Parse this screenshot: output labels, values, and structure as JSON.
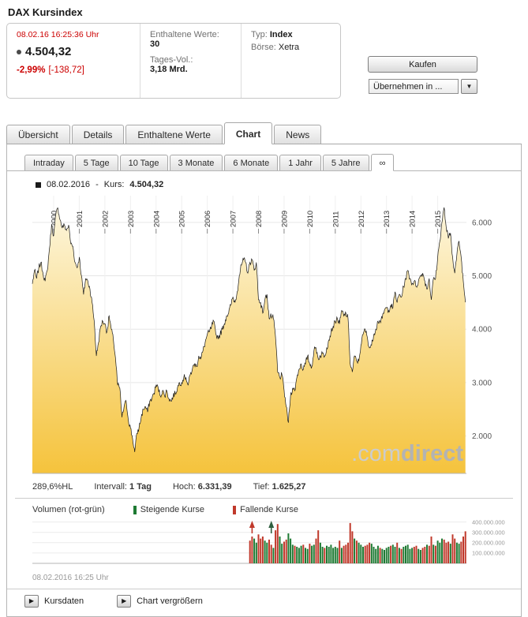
{
  "page": {
    "title": "DAX Kursindex"
  },
  "icons": {
    "dropdown_arrow": "▼",
    "link_arrow": "▶"
  },
  "quote": {
    "timestamp": "08.02.16  16:25:36 Uhr",
    "value": "4.504,32",
    "change_percent": "-2,99%",
    "change_absolute": "[-138,72]",
    "included_values_label": "Enthaltene Werte:",
    "included_values": "30",
    "day_volume_label": "Tages-Vol.:",
    "day_volume": "3,18 Mrd.",
    "type_label": "Typ:",
    "type_value": "Index",
    "exchange_label": "Börse:",
    "exchange_value": "Xetra"
  },
  "actions": {
    "buy_label": "Kaufen",
    "apply_to_label": "Übernehmen in ..."
  },
  "main_tabs": [
    {
      "label": "Übersicht",
      "active": false
    },
    {
      "label": "Details",
      "active": false
    },
    {
      "label": "Enthaltene Werte",
      "active": false
    },
    {
      "label": "Chart",
      "active": true
    },
    {
      "label": "News",
      "active": false
    }
  ],
  "range_tabs": [
    {
      "label": "Intraday",
      "active": false
    },
    {
      "label": "5 Tage",
      "active": false
    },
    {
      "label": "10 Tage",
      "active": false
    },
    {
      "label": "3 Monate",
      "active": false
    },
    {
      "label": "6 Monate",
      "active": false
    },
    {
      "label": "1 Jahr",
      "active": false
    },
    {
      "label": "5 Jahre",
      "active": false
    },
    {
      "label": "∞",
      "active": true
    }
  ],
  "chart_header": {
    "date": "08.02.2016",
    "separator": "-",
    "kurs_label": "Kurs:",
    "kurs_value": "4.504,32"
  },
  "chart_stats": {
    "hl": "289,6%HL",
    "interval_label": "Intervall:",
    "interval_value": "1 Tag",
    "high_label": "Hoch:",
    "high_value": "6.331,39",
    "low_label": "Tief:",
    "low_value": "1.625,27"
  },
  "volume_section": {
    "title": "Volumen (rot-grün)",
    "rising_label": "Steigende Kurse",
    "falling_label": "Fallende Kurse",
    "rising_color": "#1e7a33",
    "falling_color": "#c0392b",
    "timestamp": "08.02.2016 16:25 Uhr"
  },
  "footer_links": [
    {
      "label": "Kursdaten"
    },
    {
      "label": "Chart vergrößern"
    }
  ],
  "watermark": {
    "prefix": ".com",
    "suffix": "direct"
  },
  "chart_data": {
    "type": "area",
    "title": "DAX Kursindex",
    "x_axis": {
      "year_labels": [
        "2000",
        "2001",
        "2002",
        "2003",
        "2004",
        "2005",
        "2006",
        "2007",
        "2008",
        "2009",
        "2010",
        "2011",
        "2012",
        "2013",
        "2014",
        "2015"
      ]
    },
    "y_axis": {
      "tick_labels": [
        "6.000",
        "5.000",
        "4.000",
        "3.000",
        "2.000"
      ],
      "range": [
        1300,
        6500
      ]
    },
    "price_series": {
      "name": "DAX Kursindex",
      "start": "1999-03",
      "step": "month",
      "unit": "Indexpunkte",
      "last_date": "08.02.2016",
      "last_value": 4504.32,
      "high": 6331.39,
      "low": 1625.27,
      "interval_displayed": "1 Tag",
      "line_color": "#1a1a1a",
      "fill_gradient": [
        "#fdf6dd",
        "#f5c33c"
      ],
      "values": [
        4850,
        5100,
        4950,
        5150,
        5250,
        5050,
        4900,
        5100,
        5500,
        5950,
        5750,
        6150,
        6270,
        6050,
        5900,
        5950,
        5850,
        5950,
        5600,
        5550,
        5250,
        5150,
        5350,
        5000,
        4650,
        4950,
        4900,
        4750,
        4500,
        4150,
        3500,
        3750,
        4050,
        4150,
        4100,
        3950,
        4250,
        4000,
        3800,
        3450,
        2950,
        2900,
        2350,
        2550,
        2650,
        2300,
        2150,
        1950,
        1700,
        2050,
        2150,
        2350,
        2500,
        2550,
        2450,
        2650,
        2700,
        2800,
        2950,
        2900,
        2750,
        2850,
        2750,
        2850,
        2700,
        2650,
        2750,
        2800,
        2900,
        3000,
        3000,
        3100,
        3100,
        2950,
        3150,
        3250,
        3350,
        3300,
        3500,
        3450,
        3600,
        3750,
        3900,
        3950,
        4050,
        4150,
        3900,
        3850,
        3900,
        4000,
        4100,
        4250,
        4300,
        4450,
        4600,
        4500,
        4700,
        5000,
        5200,
        5300,
        5250,
        5050,
        5250,
        5300,
        5100,
        5250,
        4550,
        4500,
        4300,
        4550,
        4650,
        4200,
        4250,
        4200,
        3850,
        3200,
        3100,
        3150,
        2850,
        2550,
        2250,
        2750,
        2900,
        2850,
        3100,
        3250,
        3350,
        3250,
        3350,
        3500,
        3350,
        3300,
        3600,
        3650,
        3450,
        3500,
        3550,
        3500,
        3650,
        3800,
        3950,
        4050,
        4150,
        4200,
        4100,
        4350,
        4250,
        4300,
        4200,
        3350,
        3200,
        3500,
        3400,
        3400,
        3700,
        3900,
        4000,
        3850,
        3650,
        3700,
        3900,
        4000,
        4150,
        4150,
        4200,
        4350,
        4400,
        4350,
        4450,
        4400,
        4700,
        4500,
        4650,
        4600,
        4800,
        4950,
        5100,
        4950,
        4850,
        4900,
        4800,
        4900,
        5000,
        5050,
        4900,
        4750,
        4950,
        4550,
        4950,
        4950,
        5350,
        5650,
        6000,
        6280,
        5900,
        5700,
        5800,
        5350,
        5050,
        5400,
        5650,
        5350,
        4900,
        4504.32
      ]
    },
    "volume_series": {
      "start": "2007-09",
      "step": "month",
      "units": "shares",
      "values_in_millions": true,
      "ymax_millions": 420,
      "tick_labels": [
        "400.000.000",
        "300.000.000",
        "200.000.000",
        "100.000.000"
      ],
      "colors": {
        "r": "#c0392b",
        "g": "#1e7a33"
      },
      "spike_markers": [
        {
          "index": 1,
          "color": "#c0392b"
        },
        {
          "index": 10,
          "color": "#2f5f3f"
        }
      ],
      "bars": [
        [
          220,
          "r"
        ],
        [
          260,
          "r"
        ],
        [
          240,
          "g"
        ],
        [
          200,
          "g"
        ],
        [
          280,
          "r"
        ],
        [
          240,
          "r"
        ],
        [
          260,
          "r"
        ],
        [
          220,
          "g"
        ],
        [
          200,
          "g"
        ],
        [
          230,
          "r"
        ],
        [
          180,
          "r"
        ],
        [
          150,
          "g"
        ],
        [
          320,
          "r"
        ],
        [
          380,
          "r"
        ],
        [
          260,
          "g"
        ],
        [
          190,
          "g"
        ],
        [
          210,
          "r"
        ],
        [
          230,
          "r"
        ],
        [
          290,
          "g"
        ],
        [
          240,
          "g"
        ],
        [
          180,
          "g"
        ],
        [
          170,
          "r"
        ],
        [
          160,
          "g"
        ],
        [
          150,
          "g"
        ],
        [
          170,
          "g"
        ],
        [
          180,
          "r"
        ],
        [
          150,
          "g"
        ],
        [
          140,
          "g"
        ],
        [
          190,
          "r"
        ],
        [
          170,
          "g"
        ],
        [
          180,
          "g"
        ],
        [
          240,
          "r"
        ],
        [
          320,
          "r"
        ],
        [
          200,
          "g"
        ],
        [
          160,
          "g"
        ],
        [
          150,
          "r"
        ],
        [
          170,
          "g"
        ],
        [
          160,
          "g"
        ],
        [
          180,
          "g"
        ],
        [
          150,
          "g"
        ],
        [
          160,
          "g"
        ],
        [
          150,
          "g"
        ],
        [
          220,
          "r"
        ],
        [
          150,
          "g"
        ],
        [
          170,
          "r"
        ],
        [
          180,
          "r"
        ],
        [
          200,
          "r"
        ],
        [
          390,
          "r"
        ],
        [
          310,
          "r"
        ],
        [
          240,
          "g"
        ],
        [
          220,
          "r"
        ],
        [
          200,
          "g"
        ],
        [
          180,
          "g"
        ],
        [
          160,
          "g"
        ],
        [
          170,
          "r"
        ],
        [
          180,
          "r"
        ],
        [
          200,
          "r"
        ],
        [
          190,
          "g"
        ],
        [
          160,
          "g"
        ],
        [
          140,
          "g"
        ],
        [
          170,
          "g"
        ],
        [
          150,
          "r"
        ],
        [
          140,
          "g"
        ],
        [
          130,
          "g"
        ],
        [
          150,
          "g"
        ],
        [
          160,
          "g"
        ],
        [
          170,
          "r"
        ],
        [
          180,
          "g"
        ],
        [
          160,
          "g"
        ],
        [
          200,
          "r"
        ],
        [
          150,
          "g"
        ],
        [
          140,
          "r"
        ],
        [
          160,
          "g"
        ],
        [
          170,
          "g"
        ],
        [
          180,
          "g"
        ],
        [
          140,
          "g"
        ],
        [
          150,
          "g"
        ],
        [
          160,
          "r"
        ],
        [
          170,
          "r"
        ],
        [
          140,
          "g"
        ],
        [
          130,
          "g"
        ],
        [
          150,
          "r"
        ],
        [
          160,
          "r"
        ],
        [
          180,
          "g"
        ],
        [
          170,
          "r"
        ],
        [
          260,
          "r"
        ],
        [
          180,
          "g"
        ],
        [
          170,
          "r"
        ],
        [
          220,
          "g"
        ],
        [
          200,
          "g"
        ],
        [
          240,
          "g"
        ],
        [
          230,
          "r"
        ],
        [
          200,
          "r"
        ],
        [
          210,
          "r"
        ],
        [
          190,
          "g"
        ],
        [
          280,
          "r"
        ],
        [
          240,
          "r"
        ],
        [
          200,
          "g"
        ],
        [
          190,
          "g"
        ],
        [
          210,
          "r"
        ],
        [
          260,
          "r"
        ],
        [
          310,
          "r"
        ]
      ]
    }
  }
}
